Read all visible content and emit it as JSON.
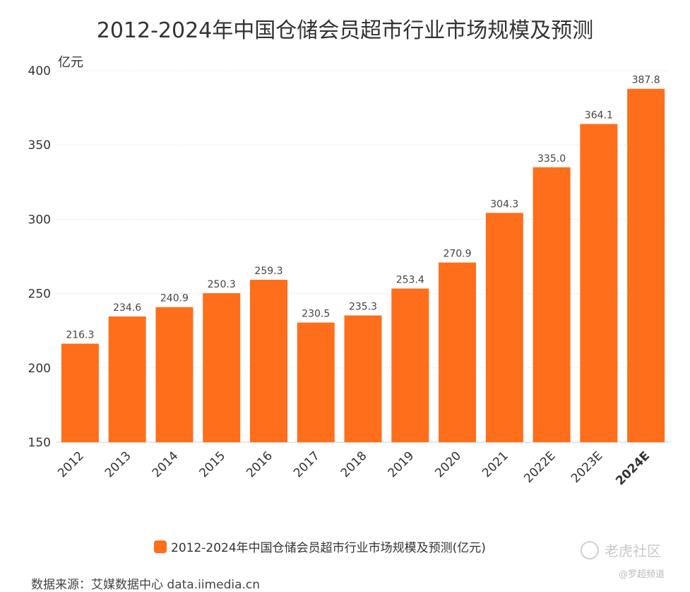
{
  "title": "2012-2024年中国仓储会员超市行业市场规模及预测",
  "unit_label": "亿元",
  "colors": {
    "bar": "#FF6E1A",
    "grid": "#e6e6e6"
  },
  "chart_data": {
    "type": "bar",
    "title": "2012-2024年中国仓储会员超市行业市场规模及预测",
    "xlabel": "",
    "ylabel": "亿元",
    "categories": [
      "2012",
      "2013",
      "2014",
      "2015",
      "2016",
      "2017",
      "2018",
      "2019",
      "2020",
      "2021",
      "2022E",
      "2023E",
      "2024E"
    ],
    "values": [
      216.3,
      234.6,
      240.9,
      250.3,
      259.3,
      230.5,
      235.3,
      253.4,
      270.9,
      304.3,
      335.0,
      364.1,
      387.8
    ],
    "value_labels": [
      "216.3",
      "234.6",
      "240.9",
      "250.3",
      "259.3",
      "230.5",
      "235.3",
      "253.4",
      "270.9",
      "304.3",
      "335.0",
      "364.1",
      "387.8"
    ],
    "ylim": [
      150,
      400
    ],
    "yticks": [
      150,
      200,
      250,
      300,
      350,
      400
    ],
    "grid": true,
    "legend_position": "bottom-center",
    "series_name": "2012-2024年中国仓储会员超市行业市场规模及预测(亿元)"
  },
  "legend": {
    "label": "2012-2024年中国仓储会员超市行业市场规模及预测(亿元)"
  },
  "source": "数据来源：艾媒数据中心 data.iimedia.cn",
  "watermark": {
    "main": "老虎社区",
    "sub": "@罗超频道"
  }
}
